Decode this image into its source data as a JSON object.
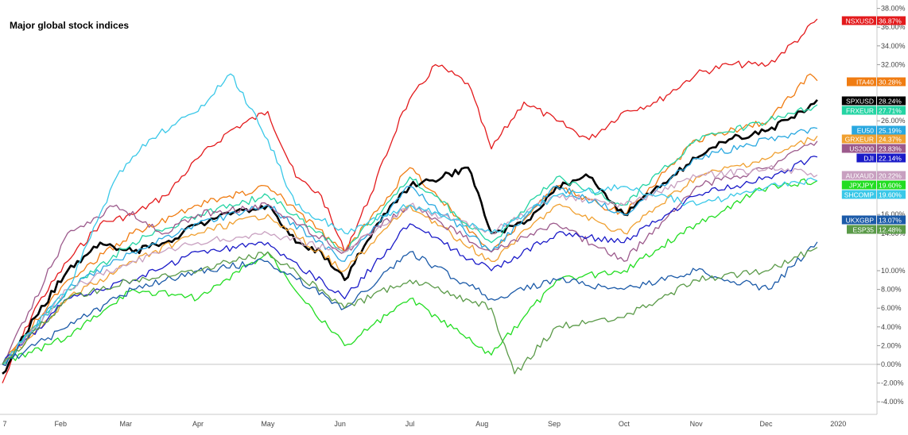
{
  "chart_data": {
    "type": "line",
    "title": "Major global stock indices",
    "x_ticks": [
      "7",
      "Feb",
      "Mar",
      "Apr",
      "May",
      "Jun",
      "Jul",
      "Aug",
      "Sep",
      "Oct",
      "Nov",
      "Dec",
      "2020"
    ],
    "y_ticks": [
      "-4.00%",
      "-2.00%",
      "0.00%",
      "2.00%",
      "4.00%",
      "6.00%",
      "8.00%",
      "10.00%",
      "14.00%",
      "16.00%",
      "26.00%",
      "32.00%",
      "34.00%",
      "36.00%",
      "38.00%"
    ],
    "ylim": [
      -5,
      39
    ],
    "x_range": [
      "2019-01-07",
      "2020-01-05"
    ],
    "grid": false,
    "series": [
      {
        "name": "NSXUSD",
        "label": "36.87%",
        "color": "#e31a1c",
        "x": [
          "2019-01-07",
          "2019-01-21",
          "2019-02-04",
          "2019-02-18",
          "2019-03-04",
          "2019-03-18",
          "2019-04-01",
          "2019-04-15",
          "2019-05-01",
          "2019-05-13",
          "2019-05-24",
          "2019-06-03",
          "2019-06-14",
          "2019-06-28",
          "2019-07-12",
          "2019-07-26",
          "2019-08-05",
          "2019-08-19",
          "2019-09-02",
          "2019-09-16",
          "2019-10-01",
          "2019-10-15",
          "2019-11-01",
          "2019-11-15",
          "2019-12-02",
          "2019-12-16",
          "2019-12-23"
        ],
        "y": [
          -2,
          6,
          11,
          15,
          16,
          18,
          22,
          25,
          27,
          20,
          18,
          12,
          18,
          27,
          32,
          30,
          23,
          28,
          26,
          24,
          27,
          28,
          31,
          32,
          32,
          35,
          36.87
        ]
      },
      {
        "name": "ITA40",
        "label": "30.28%",
        "color": "#f07c12",
        "x": [
          "2019-01-07",
          "2019-02-04",
          "2019-03-04",
          "2019-04-01",
          "2019-05-01",
          "2019-06-03",
          "2019-07-01",
          "2019-08-05",
          "2019-09-02",
          "2019-10-01",
          "2019-11-01",
          "2019-12-02",
          "2019-12-20",
          "2019-12-23"
        ],
        "y": [
          0,
          9,
          14,
          17,
          19,
          12,
          21,
          12,
          19,
          16,
          24,
          26,
          31,
          30.28
        ]
      },
      {
        "name": "SPXUSD",
        "label": "28.24%",
        "color": "#000000",
        "x": [
          "2019-01-07",
          "2019-01-21",
          "2019-02-04",
          "2019-02-18",
          "2019-03-04",
          "2019-03-18",
          "2019-04-01",
          "2019-04-15",
          "2019-05-01",
          "2019-05-13",
          "2019-05-24",
          "2019-06-03",
          "2019-06-17",
          "2019-07-01",
          "2019-07-15",
          "2019-07-26",
          "2019-08-05",
          "2019-08-19",
          "2019-09-02",
          "2019-09-16",
          "2019-10-01",
          "2019-10-15",
          "2019-11-01",
          "2019-11-15",
          "2019-12-02",
          "2019-12-16",
          "2019-12-23"
        ],
        "y": [
          -1,
          5,
          10,
          13,
          12,
          13,
          15,
          16,
          17,
          13,
          12,
          9,
          15,
          19,
          20,
          21,
          14,
          15,
          19,
          20,
          16,
          19,
          22,
          24,
          25,
          27,
          28.24
        ]
      },
      {
        "name": "FRXEUR",
        "label": "27.71%",
        "color": "#24d4a3",
        "x": [
          "2019-01-07",
          "2019-02-04",
          "2019-03-04",
          "2019-04-01",
          "2019-05-01",
          "2019-06-03",
          "2019-07-01",
          "2019-08-05",
          "2019-09-02",
          "2019-10-01",
          "2019-11-01",
          "2019-12-02",
          "2019-12-23"
        ],
        "y": [
          0,
          8,
          13,
          16,
          18,
          12,
          20,
          13,
          20,
          17,
          24,
          26,
          27.71
        ]
      },
      {
        "name": "EU50",
        "label": "25.19%",
        "color": "#29a8e0",
        "x": [
          "2019-01-07",
          "2019-02-04",
          "2019-03-04",
          "2019-04-01",
          "2019-05-01",
          "2019-06-03",
          "2019-07-01",
          "2019-08-05",
          "2019-09-02",
          "2019-10-01",
          "2019-11-01",
          "2019-12-02",
          "2019-12-23"
        ],
        "y": [
          0,
          8,
          12,
          15,
          17,
          11,
          19,
          12,
          19,
          16,
          22,
          24,
          25.19
        ]
      },
      {
        "name": "GRXEUR",
        "label": "24.37%",
        "color": "#f0a030",
        "x": [
          "2019-01-07",
          "2019-02-04",
          "2019-03-04",
          "2019-04-01",
          "2019-05-01",
          "2019-06-03",
          "2019-07-01",
          "2019-08-05",
          "2019-09-02",
          "2019-10-01",
          "2019-11-01",
          "2019-12-02",
          "2019-12-23"
        ],
        "y": [
          0,
          7,
          11,
          14,
          16,
          10,
          17,
          11,
          17,
          14,
          20,
          22,
          24.37
        ]
      },
      {
        "name": "US2000",
        "label": "23.83%",
        "color": "#9c5a8c",
        "x": [
          "2019-01-07",
          "2019-02-04",
          "2019-02-25",
          "2019-03-18",
          "2019-04-01",
          "2019-05-01",
          "2019-06-03",
          "2019-07-01",
          "2019-08-05",
          "2019-09-02",
          "2019-10-01",
          "2019-11-01",
          "2019-12-02",
          "2019-12-23"
        ],
        "y": [
          0,
          14,
          17,
          14,
          16,
          17,
          12,
          17,
          12,
          15,
          11,
          19,
          21,
          23.83
        ]
      },
      {
        "name": "DJI",
        "label": "22.14%",
        "color": "#1a1ac8",
        "x": [
          "2019-01-07",
          "2019-02-04",
          "2019-03-04",
          "2019-04-01",
          "2019-05-01",
          "2019-06-03",
          "2019-07-01",
          "2019-08-05",
          "2019-09-02",
          "2019-10-01",
          "2019-11-01",
          "2019-12-02",
          "2019-12-23"
        ],
        "y": [
          0,
          7,
          9,
          12,
          13,
          7,
          15,
          10,
          14,
          13,
          18,
          20,
          22.14
        ]
      },
      {
        "name": "AUXAUD",
        "label": "20.22%",
        "color": "#c8a0c0",
        "x": [
          "2019-01-07",
          "2019-02-04",
          "2019-03-04",
          "2019-04-01",
          "2019-05-01",
          "2019-06-03",
          "2019-07-01",
          "2019-08-05",
          "2019-09-02",
          "2019-10-01",
          "2019-11-01",
          "2019-12-02",
          "2019-12-23"
        ],
        "y": [
          0,
          8,
          11,
          13,
          14,
          12,
          17,
          14,
          18,
          17,
          20,
          21,
          20.22
        ]
      },
      {
        "name": "JPXJPY",
        "label": "19.60%",
        "color": "#22dd22",
        "x": [
          "2019-01-07",
          "2019-02-04",
          "2019-03-04",
          "2019-04-01",
          "2019-05-01",
          "2019-05-20",
          "2019-06-03",
          "2019-07-01",
          "2019-08-05",
          "2019-09-02",
          "2019-10-01",
          "2019-11-01",
          "2019-12-02",
          "2019-12-23"
        ],
        "y": [
          0,
          3,
          8,
          7,
          12,
          6,
          2,
          7,
          1,
          9,
          10,
          15,
          19,
          19.6
        ]
      },
      {
        "name": "SHCOMP",
        "label": "19.60%",
        "color": "#3ac8e8",
        "x": [
          "2019-01-07",
          "2019-02-04",
          "2019-02-25",
          "2019-03-11",
          "2019-04-01",
          "2019-04-15",
          "2019-05-01",
          "2019-05-13",
          "2019-06-03",
          "2019-07-01",
          "2019-08-05",
          "2019-09-02",
          "2019-10-01",
          "2019-11-01",
          "2019-12-02",
          "2019-12-23"
        ],
        "y": [
          0,
          8,
          20,
          24,
          27,
          31,
          24,
          17,
          14,
          17,
          14,
          18,
          19,
          17,
          19,
          19.6
        ]
      },
      {
        "name": "UKXGBP",
        "label": "13.07%",
        "color": "#1b5aa8",
        "x": [
          "2019-01-07",
          "2019-02-04",
          "2019-03-04",
          "2019-04-01",
          "2019-05-01",
          "2019-06-03",
          "2019-07-01",
          "2019-08-05",
          "2019-09-02",
          "2019-10-01",
          "2019-11-01",
          "2019-12-02",
          "2019-12-23"
        ],
        "y": [
          0,
          4,
          8,
          10,
          11,
          6,
          12,
          7,
          9,
          8,
          10,
          8,
          13.07
        ]
      },
      {
        "name": "ESP35",
        "label": "12.48%",
        "color": "#5a9a48",
        "x": [
          "2019-01-07",
          "2019-02-04",
          "2019-03-04",
          "2019-04-01",
          "2019-05-01",
          "2019-06-03",
          "2019-07-01",
          "2019-08-05",
          "2019-08-15",
          "2019-09-02",
          "2019-10-01",
          "2019-11-01",
          "2019-12-02",
          "2019-12-23"
        ],
        "y": [
          0,
          7,
          9,
          10,
          12,
          6,
          9,
          6,
          -1,
          4,
          5,
          9,
          10,
          12.48
        ]
      }
    ]
  }
}
